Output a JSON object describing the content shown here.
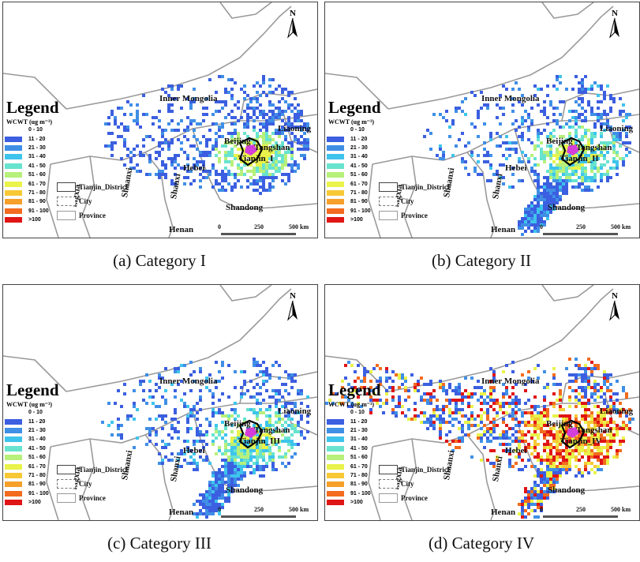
{
  "figure": {
    "panels": [
      {
        "caption": "(a) Category I",
        "district_label": "Tianjin_I",
        "intensity": "low"
      },
      {
        "caption": "(b) Category II",
        "district_label": "Tianjin_II",
        "intensity": "medium"
      },
      {
        "caption": "(c) Category III",
        "district_label": "Tianjin_III",
        "intensity": "medium"
      },
      {
        "caption": "(d) Category IV",
        "district_label": "Tianjin_IV",
        "intensity": "high"
      }
    ],
    "legend": {
      "title": "Legend",
      "subtitle": "WCWT (ug m⁻³)",
      "classes": [
        {
          "label": "0 - 10",
          "color": "#ffffff"
        },
        {
          "label": "11 - 20",
          "color": "#3b5fe0"
        },
        {
          "label": "21 - 30",
          "color": "#3f8fe6"
        },
        {
          "label": "31 - 40",
          "color": "#3ec4ec"
        },
        {
          "label": "41 - 50",
          "color": "#68e3cf"
        },
        {
          "label": "51 - 60",
          "color": "#b7f07a"
        },
        {
          "label": "61 - 70",
          "color": "#e9f34a"
        },
        {
          "label": "71 - 80",
          "color": "#f7c836"
        },
        {
          "label": "81 - 90",
          "color": "#f6a02a"
        },
        {
          "label": "91 - 100",
          "color": "#f26b1e"
        },
        {
          "label": ">100",
          "color": "#e01515"
        }
      ],
      "boundaries": [
        "Tianjin_District",
        "City",
        "Province"
      ]
    },
    "places": {
      "inner_mongolia": "Inner Mongolia",
      "liaoning": "Liaoning",
      "beijing": "Beijing",
      "tangshan": "Tangshan",
      "hebei": "Hebei",
      "shanxi": "Shanxi",
      "shaanxi": "Shaanxi",
      "ningxia": "ingxia",
      "shandong": "Shandong",
      "henan": "Henan"
    },
    "scale": {
      "zero": "0",
      "mid": "250",
      "end": "500 km"
    },
    "north": "N"
  }
}
